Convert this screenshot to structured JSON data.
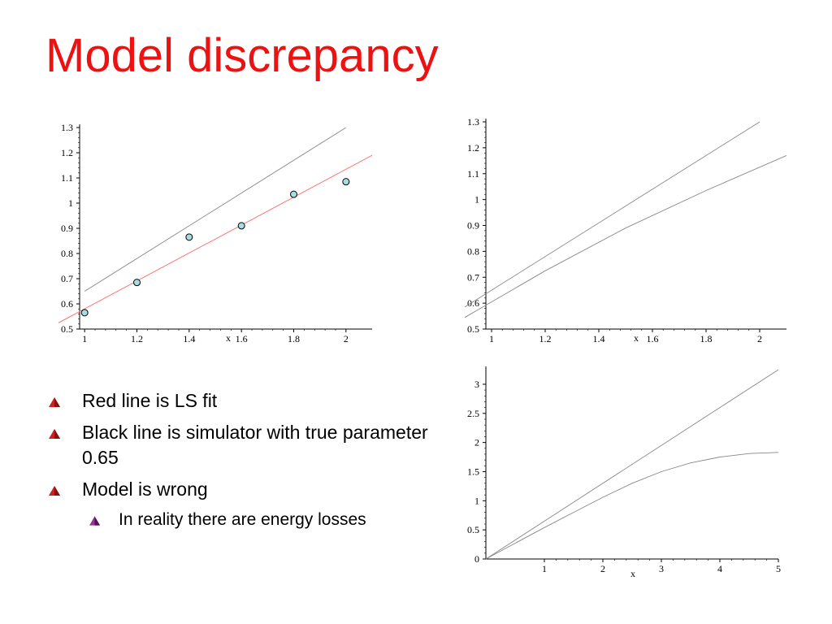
{
  "slide": {
    "title": "Model discrepancy",
    "title_color": "#ee1111"
  },
  "bullets": {
    "items": [
      {
        "text": "Red line is LS fit",
        "level": 1
      },
      {
        "text": "Black line is simulator with true parameter 0.65",
        "level": 1
      },
      {
        "text": "Model is wrong",
        "level": 1
      },
      {
        "text": "In reality there are energy losses",
        "level": 2
      }
    ],
    "marker_color_level1": "#cc2222",
    "marker_color_level2": "#993399"
  },
  "chart_data": [
    {
      "type": "scatter",
      "xlabel": "x",
      "ylabel": "",
      "xlim": [
        0.9,
        2.1
      ],
      "ylim": [
        0.5,
        1.3
      ],
      "xticks": [
        "1",
        "1.2",
        "1.4",
        "1.6",
        "1.8",
        "2"
      ],
      "yticks": [
        "0.5",
        "0.6",
        "0.7",
        "0.8",
        "0.9",
        "1",
        "1.1",
        "1.2",
        "1.3"
      ],
      "points": {
        "x": [
          1.0,
          1.2,
          1.4,
          1.6,
          1.8,
          2.0
        ],
        "y": [
          0.565,
          0.685,
          0.865,
          0.91,
          1.035,
          1.085
        ]
      },
      "lines": [
        {
          "color": "#888888",
          "x": [
            1.0,
            2.0
          ],
          "y": [
            0.65,
            1.3
          ]
        },
        {
          "color": "#ff6666",
          "x": [
            0.9,
            2.1
          ],
          "y": [
            0.525,
            1.19
          ]
        }
      ]
    },
    {
      "type": "line",
      "xlabel": "x",
      "ylabel": "",
      "xlim": [
        0.9,
        2.1
      ],
      "ylim": [
        0.5,
        1.3
      ],
      "xticks": [
        "1",
        "1.2",
        "1.4",
        "1.6",
        "1.8",
        "2"
      ],
      "yticks": [
        "0.5",
        "0.6",
        "0.7",
        "0.8",
        "0.9",
        "1",
        "1.1",
        "1.2",
        "1.3"
      ],
      "lines": [
        {
          "color": "#888888",
          "x": [
            0.9,
            2.0
          ],
          "y": [
            0.585,
            1.3
          ]
        },
        {
          "color": "#888888",
          "x": [
            0.9,
            1.2,
            1.5,
            1.8,
            2.1
          ],
          "y": [
            0.545,
            0.725,
            0.89,
            1.035,
            1.17
          ]
        }
      ]
    },
    {
      "type": "line",
      "xlabel": "x",
      "ylabel": "",
      "xlim": [
        0,
        5
      ],
      "ylim": [
        0,
        3.25
      ],
      "xticks": [
        "1",
        "2",
        "3",
        "4",
        "5"
      ],
      "yticks": [
        "0",
        "0.5",
        "1",
        "1.5",
        "2",
        "2.5",
        "3"
      ],
      "lines": [
        {
          "color": "#888888",
          "x": [
            0,
            5
          ],
          "y": [
            0,
            3.25
          ]
        },
        {
          "color": "#888888",
          "x": [
            0,
            0.5,
            1,
            1.5,
            2,
            2.5,
            3,
            3.5,
            4,
            4.5,
            5
          ],
          "y": [
            0,
            0.27,
            0.54,
            0.8,
            1.06,
            1.3,
            1.5,
            1.65,
            1.75,
            1.81,
            1.83
          ]
        }
      ]
    }
  ]
}
